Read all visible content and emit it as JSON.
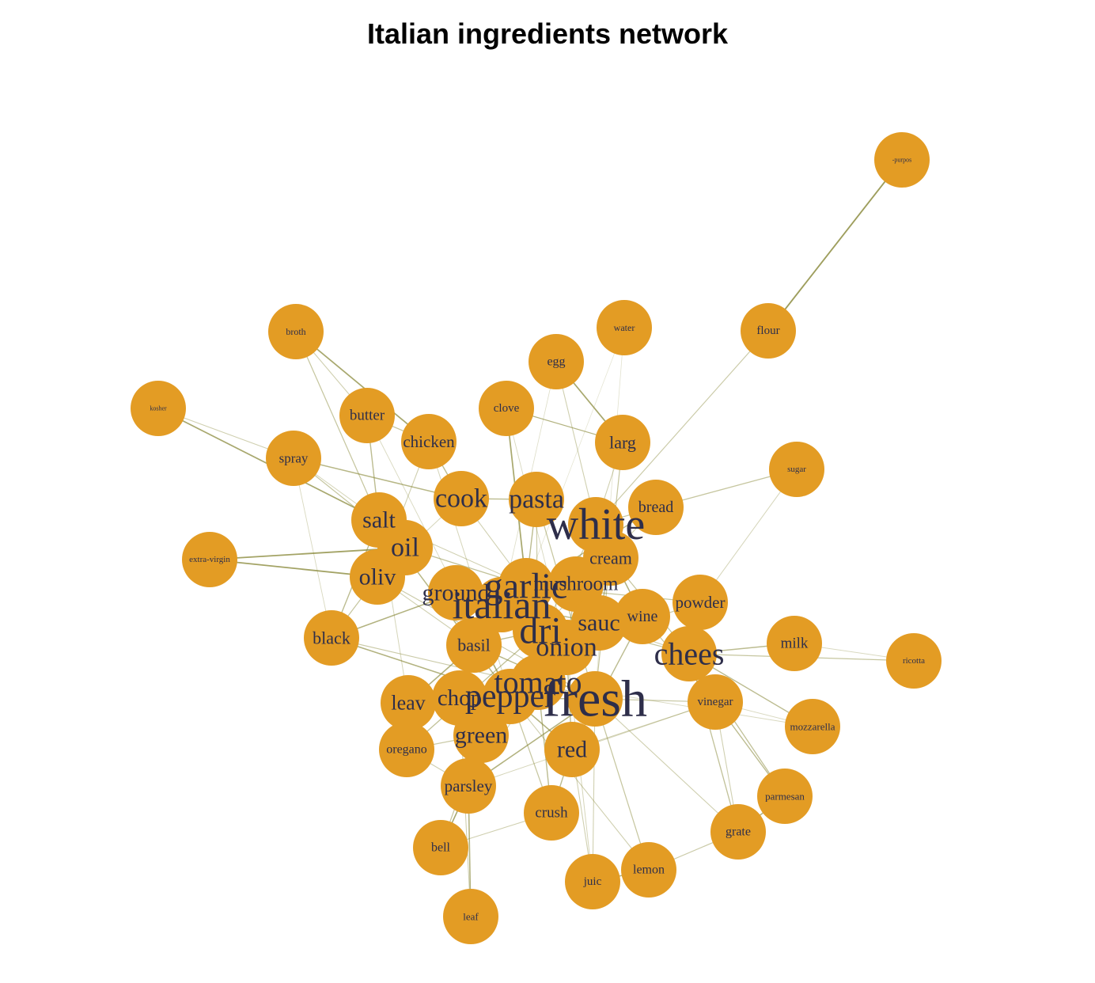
{
  "title": "Italian ingredients network",
  "colors": {
    "node": "#E39C24",
    "edge": "#8A8A3C",
    "label": "#2E2E4A"
  },
  "nodes": [
    {
      "id": "purpos",
      "label": "-purpos"
    },
    {
      "id": "flour",
      "label": "flour"
    },
    {
      "id": "water",
      "label": "water"
    },
    {
      "id": "broth",
      "label": "broth"
    },
    {
      "id": "egg",
      "label": "egg"
    },
    {
      "id": "butter",
      "label": "butter"
    },
    {
      "id": "kosher",
      "label": "kosher"
    },
    {
      "id": "clove",
      "label": "clove"
    },
    {
      "id": "chicken",
      "label": "chicken"
    },
    {
      "id": "larg",
      "label": "larg"
    },
    {
      "id": "spray",
      "label": "spray"
    },
    {
      "id": "sugar",
      "label": "sugar"
    },
    {
      "id": "cook",
      "label": "cook"
    },
    {
      "id": "pasta",
      "label": "pasta"
    },
    {
      "id": "bread",
      "label": "bread"
    },
    {
      "id": "salt",
      "label": "salt"
    },
    {
      "id": "white",
      "label": "white"
    },
    {
      "id": "oil",
      "label": "oil"
    },
    {
      "id": "extra-virgin",
      "label": "extra-virgin"
    },
    {
      "id": "cream",
      "label": "cream"
    },
    {
      "id": "oliv",
      "label": "oliv"
    },
    {
      "id": "garlic",
      "label": "garlic"
    },
    {
      "id": "mushroom",
      "label": "mushroom"
    },
    {
      "id": "ground",
      "label": "ground"
    },
    {
      "id": "italian",
      "label": "italian"
    },
    {
      "id": "powder",
      "label": "powder"
    },
    {
      "id": "wine",
      "label": "wine"
    },
    {
      "id": "sauc",
      "label": "sauc"
    },
    {
      "id": "black",
      "label": "black"
    },
    {
      "id": "dri",
      "label": "dri"
    },
    {
      "id": "milk",
      "label": "milk"
    },
    {
      "id": "basil",
      "label": "basil"
    },
    {
      "id": "onion",
      "label": "onion"
    },
    {
      "id": "chees",
      "label": "chees"
    },
    {
      "id": "ricotta",
      "label": "ricotta"
    },
    {
      "id": "tomato",
      "label": "tomato"
    },
    {
      "id": "leav",
      "label": "leav"
    },
    {
      "id": "chop",
      "label": "chop"
    },
    {
      "id": "pepper",
      "label": "pepper"
    },
    {
      "id": "fresh",
      "label": "fresh"
    },
    {
      "id": "vinegar",
      "label": "vinegar"
    },
    {
      "id": "mozzarella",
      "label": "mozzarella"
    },
    {
      "id": "green",
      "label": "green"
    },
    {
      "id": "oregano",
      "label": "oregano"
    },
    {
      "id": "red",
      "label": "red"
    },
    {
      "id": "parsley",
      "label": "parsley"
    },
    {
      "id": "parmesan",
      "label": "parmesan"
    },
    {
      "id": "crush",
      "label": "crush"
    },
    {
      "id": "grate",
      "label": "grate"
    },
    {
      "id": "bell",
      "label": "bell"
    },
    {
      "id": "lemon",
      "label": "lemon"
    },
    {
      "id": "juic",
      "label": "juic"
    },
    {
      "id": "leaf",
      "label": "leaf"
    }
  ],
  "edges": [
    [
      "purpos",
      "flour",
      0.8
    ],
    [
      "flour",
      "white",
      0.35
    ],
    [
      "water",
      "fresh",
      0.12
    ],
    [
      "water",
      "garlic",
      0.1
    ],
    [
      "broth",
      "chicken",
      0.7
    ],
    [
      "broth",
      "salt",
      0.4
    ],
    [
      "broth",
      "butter",
      0.3
    ],
    [
      "egg",
      "larg",
      0.7
    ],
    [
      "egg",
      "white",
      0.3
    ],
    [
      "egg",
      "italian",
      0.15
    ],
    [
      "butter",
      "salt",
      0.5
    ],
    [
      "butter",
      "chicken",
      0.4
    ],
    [
      "butter",
      "pepper",
      0.2
    ],
    [
      "kosher",
      "salt",
      0.7
    ],
    [
      "kosher",
      "spray",
      0.3
    ],
    [
      "clove",
      "garlic",
      0.7
    ],
    [
      "clove",
      "larg",
      0.4
    ],
    [
      "clove",
      "onion",
      0.2
    ],
    [
      "chicken",
      "cook",
      0.5
    ],
    [
      "chicken",
      "oliv",
      0.3
    ],
    [
      "chicken",
      "pepper",
      0.25
    ],
    [
      "larg",
      "fresh",
      0.4
    ],
    [
      "larg",
      "white",
      0.3
    ],
    [
      "larg",
      "clove",
      0.2
    ],
    [
      "spray",
      "cook",
      0.55
    ],
    [
      "spray",
      "oil",
      0.4
    ],
    [
      "spray",
      "salt",
      0.25
    ],
    [
      "spray",
      "black",
      0.2
    ],
    [
      "sugar",
      "bread",
      0.4
    ],
    [
      "sugar",
      "powder",
      0.25
    ],
    [
      "cook",
      "pasta",
      0.5
    ],
    [
      "cook",
      "garlic",
      0.3
    ],
    [
      "cook",
      "oliv",
      0.25
    ],
    [
      "pasta",
      "garlic",
      0.5
    ],
    [
      "pasta",
      "tomato",
      0.35
    ],
    [
      "pasta",
      "fresh",
      0.4
    ],
    [
      "bread",
      "italian",
      0.5
    ],
    [
      "bread",
      "white",
      0.4
    ],
    [
      "bread",
      "dri",
      0.3
    ],
    [
      "salt",
      "oil",
      0.6
    ],
    [
      "salt",
      "black",
      0.5
    ],
    [
      "salt",
      "pepper",
      0.55
    ],
    [
      "salt",
      "garlic",
      0.3
    ],
    [
      "salt",
      "leav",
      0.25
    ],
    [
      "oil",
      "oliv",
      0.8
    ],
    [
      "oil",
      "extra-virgin",
      0.75
    ],
    [
      "oil",
      "garlic",
      0.45
    ],
    [
      "extra-virgin",
      "oliv",
      0.75
    ],
    [
      "oliv",
      "black",
      0.4
    ],
    [
      "oliv",
      "basil",
      0.3
    ],
    [
      "oliv",
      "fresh",
      0.35
    ],
    [
      "white",
      "wine",
      0.6
    ],
    [
      "white",
      "sauc",
      0.4
    ],
    [
      "white",
      "cream",
      0.4
    ],
    [
      "white",
      "pepper",
      0.35
    ],
    [
      "cream",
      "chees",
      0.4
    ],
    [
      "cream",
      "sauc",
      0.5
    ],
    [
      "garlic",
      "italian",
      0.6
    ],
    [
      "garlic",
      "onion",
      0.6
    ],
    [
      "garlic",
      "tomato",
      0.5
    ],
    [
      "garlic",
      "basil",
      0.4
    ],
    [
      "mushroom",
      "sauc",
      0.4
    ],
    [
      "mushroom",
      "onion",
      0.4
    ],
    [
      "ground",
      "black",
      0.6
    ],
    [
      "ground",
      "pepper",
      0.6
    ],
    [
      "ground",
      "italian",
      0.3
    ],
    [
      "italian",
      "dri",
      0.5
    ],
    [
      "italian",
      "sauc",
      0.5
    ],
    [
      "italian",
      "chees",
      0.4
    ],
    [
      "powder",
      "garlic",
      0.4
    ],
    [
      "powder",
      "onion",
      0.35
    ],
    [
      "wine",
      "vinegar",
      0.4
    ],
    [
      "wine",
      "red",
      0.5
    ],
    [
      "sauc",
      "tomato",
      0.6
    ],
    [
      "sauc",
      "chees",
      0.3
    ],
    [
      "black",
      "pepper",
      0.6
    ],
    [
      "black",
      "fresh",
      0.35
    ],
    [
      "dri",
      "basil",
      0.5
    ],
    [
      "dri",
      "oregano",
      0.45
    ],
    [
      "dri",
      "parsley",
      0.3
    ],
    [
      "dri",
      "tomato",
      0.35
    ],
    [
      "milk",
      "chees",
      0.5
    ],
    [
      "milk",
      "ricotta",
      0.2
    ],
    [
      "chees",
      "ricotta",
      0.4
    ],
    [
      "chees",
      "mozzarella",
      0.5
    ],
    [
      "chees",
      "parmesan",
      0.45
    ],
    [
      "chees",
      "grate",
      0.45
    ],
    [
      "basil",
      "leav",
      0.6
    ],
    [
      "basil",
      "fresh",
      0.55
    ],
    [
      "onion",
      "chop",
      0.6
    ],
    [
      "onion",
      "green",
      0.4
    ],
    [
      "onion",
      "red",
      0.5
    ],
    [
      "tomato",
      "crush",
      0.5
    ],
    [
      "tomato",
      "fresh",
      0.45
    ],
    [
      "tomato",
      "parsley",
      0.3
    ],
    [
      "chop",
      "fresh",
      0.5
    ],
    [
      "chop",
      "parsley",
      0.4
    ],
    [
      "pepper",
      "red",
      0.6
    ],
    [
      "pepper",
      "bell",
      0.55
    ],
    [
      "pepper",
      "green",
      0.5
    ],
    [
      "pepper",
      "crush",
      0.4
    ],
    [
      "fresh",
      "parsley",
      0.6
    ],
    [
      "fresh",
      "lemon",
      0.4
    ],
    [
      "fresh",
      "juic",
      0.3
    ],
    [
      "fresh",
      "vinegar",
      0.35
    ],
    [
      "fresh",
      "grate",
      0.3
    ],
    [
      "vinegar",
      "grate",
      0.3
    ],
    [
      "vinegar",
      "parsley",
      0.25
    ],
    [
      "vinegar",
      "mozzarella",
      0.2
    ],
    [
      "mozzarella",
      "tomato",
      0.2
    ],
    [
      "green",
      "bell",
      0.4
    ],
    [
      "green",
      "oregano",
      0.35
    ],
    [
      "red",
      "crush",
      0.5
    ],
    [
      "red",
      "juic",
      0.3
    ],
    [
      "red",
      "vinegar",
      0.3
    ],
    [
      "parsley",
      "leaf",
      0.6
    ],
    [
      "parsley",
      "bell",
      0.35
    ],
    [
      "parsley",
      "oregano",
      0.3
    ],
    [
      "parmesan",
      "grate",
      0.6
    ],
    [
      "parmesan",
      "vinegar",
      0.5
    ],
    [
      "crush",
      "bell",
      0.3
    ],
    [
      "grate",
      "lemon",
      0.35
    ],
    [
      "lemon",
      "juic",
      0.6
    ],
    [
      "lemon",
      "pepper",
      0.3
    ],
    [
      "juic",
      "onion",
      0.25
    ],
    [
      "leaf",
      "chop",
      0.3
    ],
    [
      "oregano",
      "leav",
      0.3
    ]
  ]
}
